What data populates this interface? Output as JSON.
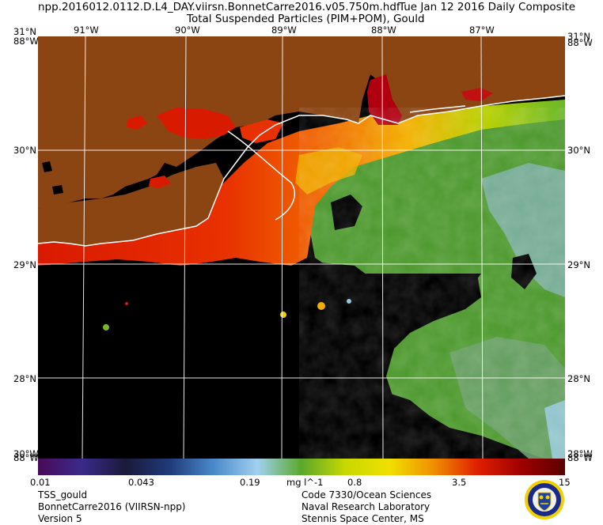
{
  "header": {
    "filename": "npp.2016012.0112.D.L4_DAY.viirsn.BonnetCarre2016.v05.750m.hdf",
    "date": "Tue Jan 12 2016 Daily Composite",
    "product": "Total Suspended Particles (PIM+POM), Gould"
  },
  "axes": {
    "top_lon": [
      "91°W",
      "90°W",
      "89°W",
      "88°W",
      "87°W"
    ],
    "left_lat": [
      "30°N",
      "29°N",
      "28°N"
    ],
    "right_lat": [
      "30°N",
      "29°N",
      "28°N"
    ],
    "corner_top_left_a": "31°N",
    "corner_top_left_b": "88°W",
    "corner_top_right_a": "31°N",
    "corner_top_right_b": "88°W",
    "corner_bottom_left_a": "30°W",
    "corner_bottom_left_b": "88°W",
    "corner_bottom_right_a": "28°W",
    "corner_bottom_right_b": "88°W"
  },
  "colorbar": {
    "ticks": [
      "0.01",
      "0.043",
      "0.19",
      "0.8",
      "3.5",
      "15"
    ],
    "unit": "mg l^-1",
    "colors": [
      "#4a0a5a",
      "#3a2a8a",
      "#1a1a3a",
      "#203a7a",
      "#4a8aca",
      "#a0d0f0",
      "#5aa82a",
      "#c8d800",
      "#f0e000",
      "#f09000",
      "#e02000",
      "#a00000",
      "#5a0000"
    ]
  },
  "footer": {
    "left1": "TSS_gould",
    "left2": "BonnetCarre2016 (VIIRSN-npp)",
    "left3": "Version 5",
    "right1": "Code 7330/Ocean Sciences",
    "right2": "Naval Research Laboratory",
    "right3": "Stennis Space Center, MS"
  },
  "map_colors": {
    "land": "#8b4513",
    "no_data": "#000000",
    "grid": "#ffffff"
  }
}
